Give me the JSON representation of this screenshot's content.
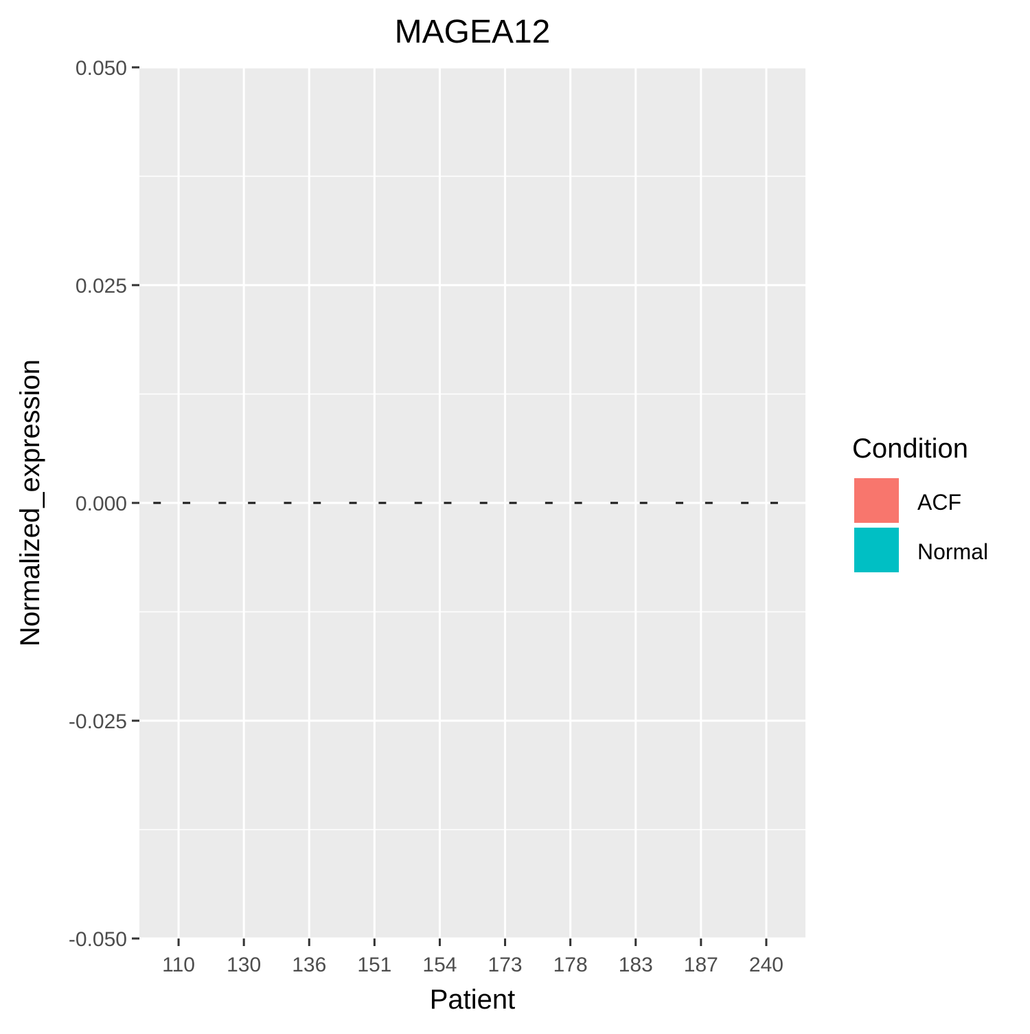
{
  "chart_data": {
    "type": "bar",
    "title": "MAGEA12",
    "xlabel": "Patient",
    "ylabel": "Normalized_expression",
    "categories": [
      "110",
      "130",
      "136",
      "151",
      "154",
      "173",
      "178",
      "183",
      "187",
      "240"
    ],
    "series": [
      {
        "name": "ACF",
        "color": "#F8766D",
        "values": [
          0,
          0,
          0,
          0,
          0,
          0,
          0,
          0,
          0,
          0
        ]
      },
      {
        "name": "Normal",
        "color": "#00BFC4",
        "values": [
          0,
          0,
          0,
          0,
          0,
          0,
          0,
          0,
          0,
          0
        ]
      }
    ],
    "ylim": [
      -0.05,
      0.05
    ],
    "yticks": [
      -0.05,
      -0.025,
      0,
      0.025,
      0.05
    ],
    "ytick_labels": [
      "-0.050",
      "-0.025",
      "0.000",
      "0.025",
      "0.050"
    ],
    "grid": true,
    "legend": {
      "title": "Condition",
      "position": "right"
    },
    "panel_color": "#EBEBEB",
    "grid_color": "#FFFFFF"
  }
}
